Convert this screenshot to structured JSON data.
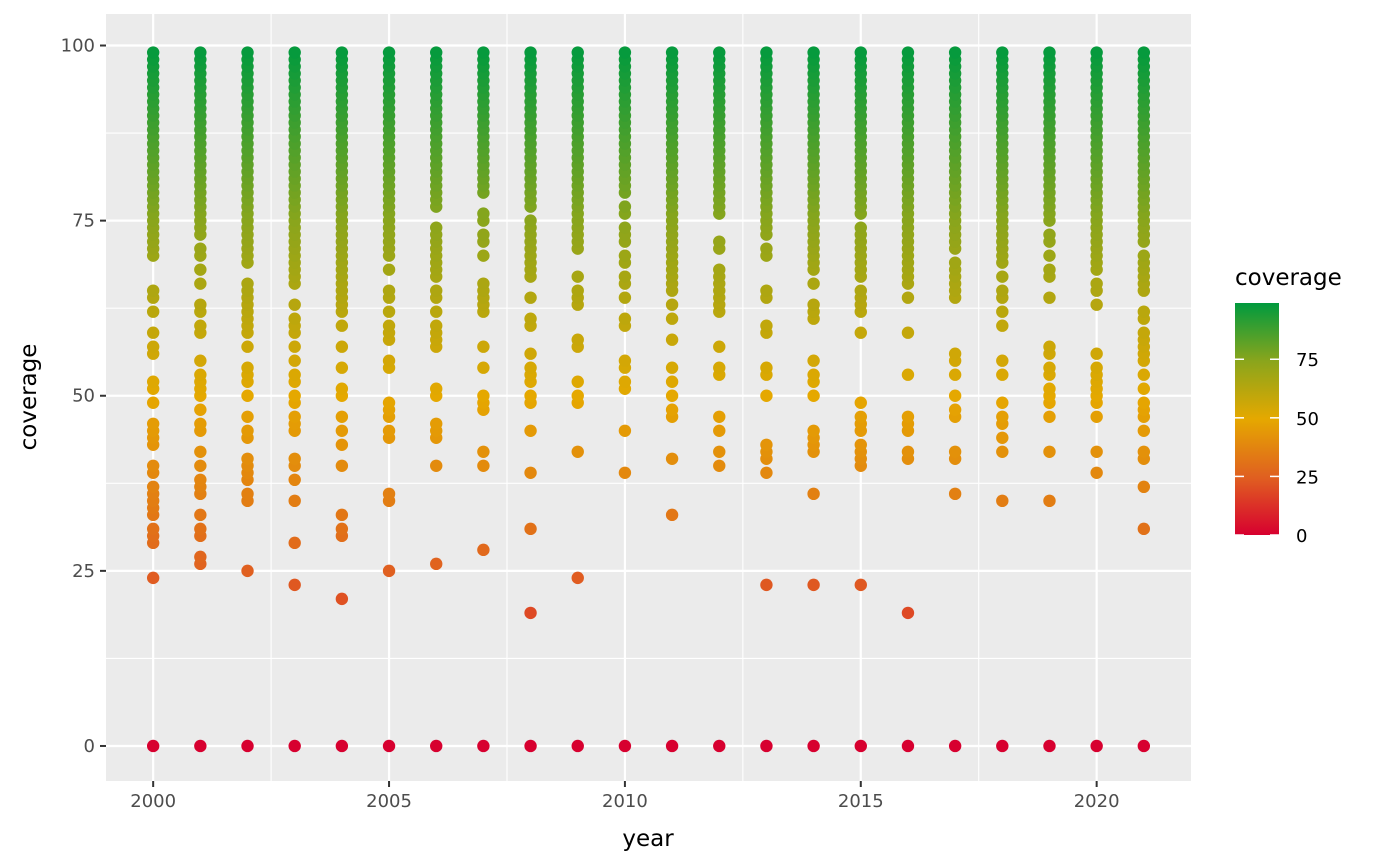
{
  "chart_data": {
    "type": "scatter",
    "title": "",
    "xlabel": "year",
    "ylabel": "coverage",
    "xlim": [
      1999.0,
      2022.0
    ],
    "ylim": [
      -5,
      104.5
    ],
    "x_ticks": [
      2000,
      2005,
      2010,
      2015,
      2020
    ],
    "x_tick_labels": [
      "2000",
      "2005",
      "2010",
      "2015",
      "2020"
    ],
    "y_ticks": [
      0,
      25,
      50,
      75,
      100
    ],
    "y_tick_labels": [
      "0",
      "25",
      "50",
      "75",
      "100"
    ],
    "grid": true,
    "legend": {
      "title": "coverage",
      "placement": "right",
      "type": "colorbar",
      "range": [
        0,
        99
      ],
      "breaks": [
        0,
        25,
        50,
        75
      ],
      "labels": [
        "0",
        "25",
        "50",
        "75"
      ]
    },
    "colors": {
      "low": "#D7002F",
      "mid_low": "#E06020",
      "mid": "#E5A800",
      "mid_high": "#8AA51C",
      "high": "#009A3E",
      "panel_background": "#EBEBEB",
      "grid": "#FFFFFF"
    },
    "series": [
      {
        "year": 2000,
        "dense_from": 70,
        "dense_to": 99,
        "values": [
          0,
          24,
          29,
          30,
          31,
          33,
          34,
          35,
          36,
          37,
          39,
          40,
          43,
          44,
          45,
          46,
          49,
          51,
          52,
          56,
          57,
          59,
          62,
          64,
          65
        ]
      },
      {
        "year": 2001,
        "dense_from": 73,
        "dense_to": 99,
        "values": [
          0,
          26,
          27,
          30,
          31,
          33,
          36,
          37,
          38,
          40,
          42,
          45,
          46,
          48,
          50,
          51,
          52,
          53,
          55,
          59,
          60,
          62,
          63,
          66,
          68,
          70,
          71
        ]
      },
      {
        "year": 2002,
        "dense_from": 69,
        "dense_to": 99,
        "values": [
          0,
          25,
          35,
          36,
          38,
          39,
          40,
          41,
          44,
          45,
          47,
          50,
          52,
          53,
          54,
          57,
          59,
          60,
          61,
          62,
          63,
          64,
          65,
          66
        ]
      },
      {
        "year": 2003,
        "dense_from": 67,
        "dense_to": 99,
        "values": [
          0,
          23,
          29,
          35,
          38,
          40,
          41,
          45,
          46,
          47,
          49,
          50,
          52,
          53,
          55,
          57,
          59,
          60,
          61,
          63,
          66
        ]
      },
      {
        "year": 2004,
        "dense_from": 66,
        "dense_to": 99,
        "values": [
          0,
          21,
          30,
          31,
          33,
          40,
          43,
          45,
          47,
          50,
          51,
          54,
          57,
          60,
          62,
          63,
          64,
          65
        ]
      },
      {
        "year": 2005,
        "dense_from": 70,
        "dense_to": 99,
        "values": [
          0,
          25,
          35,
          36,
          44,
          45,
          47,
          48,
          49,
          54,
          55,
          58,
          59,
          60,
          62,
          64,
          65,
          68
        ]
      },
      {
        "year": 2006,
        "dense_from": 79,
        "dense_to": 99,
        "values": [
          0,
          26,
          40,
          44,
          45,
          46,
          50,
          51,
          57,
          58,
          59,
          60,
          62,
          64,
          65,
          67,
          68,
          69,
          70,
          71,
          72,
          73,
          74,
          77,
          78
        ]
      },
      {
        "year": 2007,
        "dense_from": 90,
        "dense_to": 99,
        "values": [
          0,
          28,
          40,
          42,
          48,
          49,
          50,
          54,
          57,
          62,
          63,
          64,
          65,
          66,
          70,
          72,
          73,
          75,
          76,
          79,
          80,
          81,
          82,
          83,
          84,
          85,
          86,
          87,
          88,
          89
        ]
      },
      {
        "year": 2008,
        "dense_from": 80,
        "dense_to": 99,
        "values": [
          0,
          19,
          31,
          39,
          45,
          49,
          50,
          52,
          53,
          54,
          56,
          60,
          61,
          64,
          67,
          68,
          69,
          70,
          71,
          72,
          73,
          74,
          75,
          77,
          78,
          79
        ]
      },
      {
        "year": 2009,
        "dense_from": 71,
        "dense_to": 99,
        "values": [
          0,
          24,
          42,
          49,
          50,
          52,
          57,
          58,
          63,
          64,
          65,
          67
        ]
      },
      {
        "year": 2010,
        "dense_from": 87,
        "dense_to": 99,
        "values": [
          0,
          39,
          45,
          51,
          52,
          54,
          55,
          60,
          61,
          64,
          66,
          67,
          69,
          70,
          72,
          73,
          74,
          76,
          77,
          79,
          80,
          81,
          82,
          83,
          84,
          85,
          86
        ]
      },
      {
        "year": 2011,
        "dense_from": 74,
        "dense_to": 99,
        "values": [
          0,
          33,
          41,
          47,
          48,
          50,
          52,
          54,
          58,
          61,
          63,
          65,
          66,
          67,
          68,
          69,
          70,
          71,
          72,
          73
        ]
      },
      {
        "year": 2012,
        "dense_from": 76,
        "dense_to": 99,
        "values": [
          0,
          40,
          42,
          45,
          47,
          53,
          54,
          57,
          62,
          63,
          64,
          65,
          66,
          67,
          68,
          71,
          72
        ]
      },
      {
        "year": 2013,
        "dense_from": 78,
        "dense_to": 99,
        "values": [
          0,
          23,
          39,
          41,
          42,
          43,
          50,
          53,
          54,
          59,
          60,
          64,
          65,
          70,
          71,
          73,
          74,
          75,
          76,
          77
        ]
      },
      {
        "year": 2014,
        "dense_from": 69,
        "dense_to": 99,
        "values": [
          0,
          23,
          36,
          42,
          43,
          44,
          45,
          50,
          52,
          53,
          55,
          61,
          62,
          63,
          66,
          68
        ]
      },
      {
        "year": 2015,
        "dense_from": 77,
        "dense_to": 99,
        "values": [
          0,
          23,
          40,
          41,
          42,
          43,
          45,
          46,
          47,
          49,
          59,
          62,
          63,
          64,
          65,
          67,
          68,
          69,
          70,
          71,
          72,
          73,
          74,
          76
        ]
      },
      {
        "year": 2016,
        "dense_from": 72,
        "dense_to": 99,
        "values": [
          0,
          19,
          41,
          42,
          45,
          46,
          47,
          53,
          59,
          64,
          66,
          67,
          68,
          69,
          70,
          71
        ]
      },
      {
        "year": 2017,
        "dense_from": 72,
        "dense_to": 99,
        "values": [
          0,
          36,
          41,
          42,
          47,
          48,
          50,
          53,
          55,
          56,
          64,
          65,
          66,
          67,
          68,
          69,
          71
        ]
      },
      {
        "year": 2018,
        "dense_from": 77,
        "dense_to": 99,
        "values": [
          0,
          35,
          42,
          44,
          46,
          47,
          49,
          53,
          55,
          60,
          62,
          64,
          65,
          67,
          69,
          70,
          71,
          72,
          73,
          74,
          75,
          76
        ]
      },
      {
        "year": 2019,
        "dense_from": 75,
        "dense_to": 99,
        "values": [
          0,
          35,
          42,
          47,
          49,
          50,
          51,
          53,
          54,
          56,
          57,
          64,
          67,
          68,
          70,
          72,
          73
        ]
      },
      {
        "year": 2020,
        "dense_from": 70,
        "dense_to": 99,
        "values": [
          0,
          39,
          42,
          47,
          49,
          50,
          51,
          52,
          53,
          54,
          56,
          63,
          65,
          66,
          68,
          69
        ]
      },
      {
        "year": 2021,
        "dense_from": 72,
        "dense_to": 99,
        "values": [
          0,
          31,
          37,
          41,
          42,
          45,
          47,
          48,
          49,
          51,
          53,
          55,
          56,
          57,
          58,
          59,
          61,
          62,
          65,
          66,
          67,
          68,
          69,
          70
        ]
      }
    ]
  }
}
